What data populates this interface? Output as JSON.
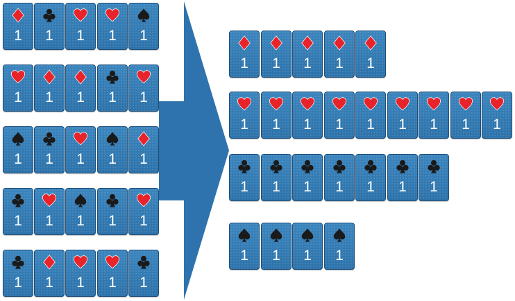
{
  "source_hands": [
    [
      "diamond",
      "club",
      "heart",
      "heart",
      "spade"
    ],
    [
      "heart",
      "diamond",
      "diamond",
      "club",
      "heart"
    ],
    [
      "spade",
      "club",
      "heart",
      "spade",
      "diamond"
    ],
    [
      "club",
      "heart",
      "spade",
      "club",
      "heart"
    ],
    [
      "club",
      "diamond",
      "heart",
      "heart",
      "club"
    ]
  ],
  "sorted_groups": [
    {
      "suit": "diamond",
      "count": 5
    },
    {
      "suit": "heart",
      "count": 9
    },
    {
      "suit": "club",
      "count": 7
    },
    {
      "suit": "spade",
      "count": 4
    }
  ],
  "card_value": "1",
  "colors": {
    "card_blue": "#2f79b3",
    "arrow_blue": "#2e73ad",
    "red_suit": "#e8232a",
    "black_suit": "#1a1a1a"
  }
}
